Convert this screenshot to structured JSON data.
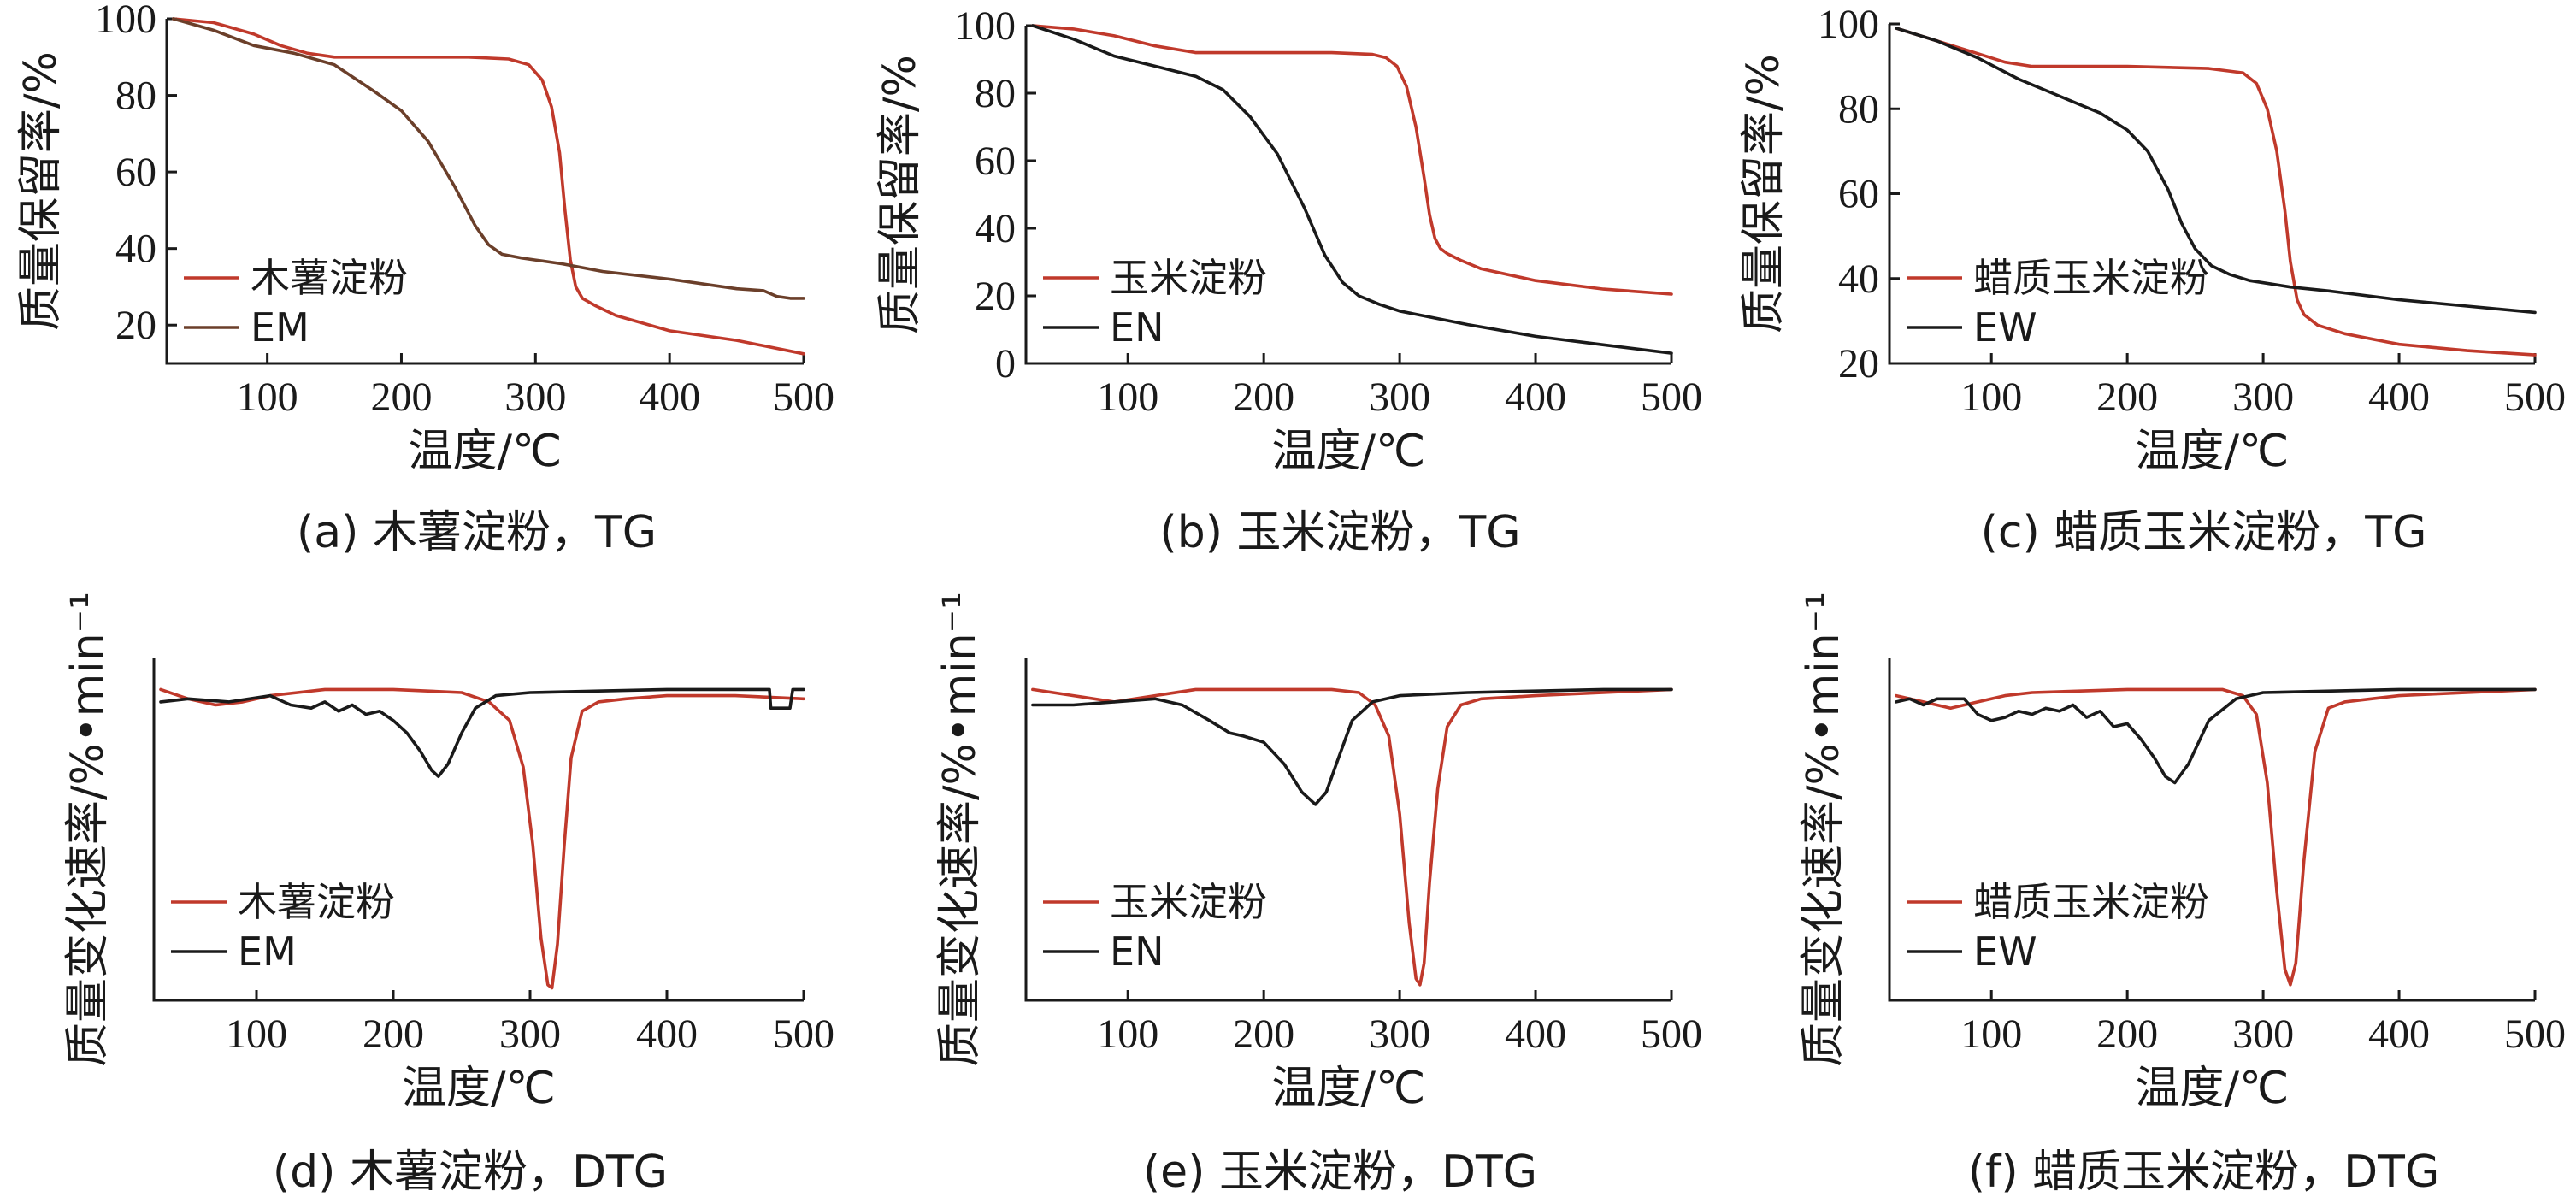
{
  "colors": {
    "starch": "#c0392b",
    "ester": "#1a1a1a",
    "ester_em_tg": "#6b3f2a"
  },
  "chart_data": [
    {
      "type": "line",
      "caption": "(a) 木薯淀粉，TG",
      "xlabel": "温度/℃",
      "ylabel": "质量保留率/%",
      "xlim": [
        25,
        500
      ],
      "ylim": [
        10,
        100
      ],
      "xticks": [
        100,
        200,
        300,
        400,
        500
      ],
      "yticks": [
        20,
        40,
        60,
        80,
        100
      ],
      "legend_position": "lower-left",
      "series": [
        {
          "name": "木薯淀粉",
          "color_key": "starch",
          "x": [
            30,
            60,
            90,
            110,
            130,
            150,
            200,
            250,
            280,
            295,
            305,
            312,
            318,
            322,
            326,
            330,
            335,
            345,
            360,
            400,
            450,
            500
          ],
          "y": [
            100,
            99,
            96,
            93,
            91,
            90,
            90,
            90,
            89.5,
            88,
            84,
            77,
            65,
            50,
            37,
            30,
            27,
            25,
            22.5,
            18.5,
            16,
            12.5
          ]
        },
        {
          "name": "EM",
          "color_key": "ester_em_tg",
          "x": [
            30,
            60,
            90,
            120,
            150,
            180,
            200,
            220,
            240,
            255,
            265,
            275,
            290,
            300,
            320,
            350,
            400,
            450,
            470,
            480,
            490,
            500
          ],
          "y": [
            100,
            97,
            93,
            91,
            88,
            81,
            76,
            68,
            56,
            46,
            41,
            38.5,
            37.5,
            37,
            36,
            34,
            32,
            29.5,
            29,
            27.5,
            27,
            27
          ]
        }
      ]
    },
    {
      "type": "line",
      "caption": "(b) 玉米淀粉，TG",
      "xlabel": "温度/℃",
      "ylabel": "质量保留率/%",
      "xlim": [
        25,
        500
      ],
      "ylim": [
        0,
        100
      ],
      "xticks": [
        100,
        200,
        300,
        400,
        500
      ],
      "yticks": [
        0,
        20,
        40,
        60,
        80,
        100
      ],
      "legend_position": "lower-left",
      "series": [
        {
          "name": "玉米淀粉",
          "color_key": "starch",
          "x": [
            30,
            60,
            90,
            120,
            150,
            200,
            250,
            280,
            290,
            298,
            305,
            312,
            318,
            322,
            326,
            330,
            335,
            345,
            360,
            400,
            450,
            500
          ],
          "y": [
            100,
            99,
            97,
            94,
            92,
            92,
            92,
            91.5,
            90.5,
            88,
            82,
            70,
            55,
            44,
            37,
            34,
            32.5,
            30.5,
            28,
            24.5,
            22,
            20.5
          ]
        },
        {
          "name": "EN",
          "color_key": "ester",
          "x": [
            30,
            60,
            90,
            120,
            150,
            170,
            190,
            210,
            230,
            245,
            258,
            270,
            285,
            300,
            350,
            400,
            450,
            500
          ],
          "y": [
            100,
            96,
            91,
            88,
            85,
            81,
            73,
            62,
            46,
            32,
            24,
            20,
            17.5,
            15.5,
            11.5,
            8,
            5.5,
            3
          ]
        }
      ]
    },
    {
      "type": "line",
      "caption": "(c) 蜡质玉米淀粉，TG",
      "xlabel": "温度/℃",
      "ylabel": "质量保留率/%",
      "xlim": [
        25,
        500
      ],
      "ylim": [
        20,
        100
      ],
      "xticks": [
        100,
        200,
        300,
        400,
        500
      ],
      "yticks": [
        20,
        40,
        60,
        80,
        100
      ],
      "legend_position": "lower-left",
      "series": [
        {
          "name": "蜡质玉米淀粉",
          "color_key": "starch",
          "x": [
            30,
            60,
            90,
            110,
            130,
            200,
            260,
            285,
            295,
            303,
            310,
            316,
            320,
            325,
            330,
            340,
            360,
            400,
            450,
            500
          ],
          "y": [
            99,
            96,
            93,
            91,
            90,
            90,
            89.5,
            88.5,
            86,
            80,
            70,
            56,
            44,
            35,
            31.5,
            29,
            27,
            24.5,
            23,
            22
          ]
        },
        {
          "name": "EW",
          "color_key": "ester",
          "x": [
            30,
            60,
            90,
            120,
            150,
            180,
            200,
            215,
            230,
            240,
            250,
            262,
            275,
            290,
            320,
            350,
            400,
            450,
            500
          ],
          "y": [
            99,
            96,
            92,
            87,
            83,
            79,
            75,
            70,
            61,
            53,
            47,
            43,
            41,
            39.5,
            38,
            37,
            35,
            33.5,
            32
          ]
        }
      ]
    },
    {
      "type": "line",
      "caption": "(d) 木薯淀粉，DTG",
      "xlabel": "温度/℃",
      "ylabel": "质量变化速率/%•min⁻¹",
      "xlim": [
        25,
        500
      ],
      "ylim": [
        -1,
        0.1
      ],
      "xticks": [
        100,
        200,
        300,
        400,
        500
      ],
      "yticks": [],
      "legend_position": "lower-left",
      "series": [
        {
          "name": "木薯淀粉",
          "color_key": "starch",
          "x": [
            30,
            50,
            70,
            90,
            110,
            130,
            150,
            200,
            250,
            270,
            285,
            295,
            302,
            308,
            313,
            316,
            320,
            325,
            330,
            338,
            350,
            370,
            400,
            450,
            500
          ],
          "y": [
            0,
            -0.03,
            -0.05,
            -0.04,
            -0.02,
            -0.01,
            0,
            0,
            -0.01,
            -0.04,
            -0.1,
            -0.25,
            -0.5,
            -0.8,
            -0.95,
            -0.96,
            -0.82,
            -0.5,
            -0.22,
            -0.07,
            -0.04,
            -0.03,
            -0.02,
            -0.02,
            -0.03
          ]
        },
        {
          "name": "EM",
          "color_key": "ester",
          "x": [
            30,
            50,
            80,
            110,
            125,
            140,
            150,
            160,
            170,
            180,
            190,
            200,
            210,
            220,
            228,
            233,
            240,
            250,
            260,
            275,
            300,
            350,
            400,
            450,
            475,
            476,
            478,
            490,
            492,
            500
          ],
          "y": [
            -0.04,
            -0.03,
            -0.04,
            -0.02,
            -0.05,
            -0.06,
            -0.04,
            -0.07,
            -0.05,
            -0.08,
            -0.07,
            -0.1,
            -0.14,
            -0.2,
            -0.26,
            -0.28,
            -0.24,
            -0.14,
            -0.06,
            -0.02,
            -0.01,
            -0.005,
            0,
            0,
            0,
            -0.06,
            -0.06,
            -0.06,
            0,
            0
          ]
        }
      ]
    },
    {
      "type": "line",
      "caption": "(e) 玉米淀粉，DTG",
      "xlabel": "温度/℃",
      "ylabel": "质量变化速率/%•min⁻¹",
      "xlim": [
        25,
        500
      ],
      "ylim": [
        -1,
        0.1
      ],
      "xticks": [
        100,
        200,
        300,
        400,
        500
      ],
      "yticks": [],
      "legend_position": "lower-left",
      "series": [
        {
          "name": "玉米淀粉",
          "color_key": "starch",
          "x": [
            30,
            60,
            90,
            120,
            150,
            200,
            250,
            270,
            282,
            292,
            300,
            307,
            312,
            315,
            318,
            322,
            328,
            335,
            345,
            360,
            400,
            450,
            500
          ],
          "y": [
            0,
            -0.02,
            -0.04,
            -0.02,
            0,
            0,
            0,
            -0.01,
            -0.05,
            -0.15,
            -0.4,
            -0.75,
            -0.93,
            -0.95,
            -0.88,
            -0.62,
            -0.32,
            -0.12,
            -0.05,
            -0.03,
            -0.02,
            -0.01,
            0
          ]
        },
        {
          "name": "EN",
          "color_key": "ester",
          "x": [
            30,
            60,
            90,
            120,
            140,
            160,
            175,
            185,
            200,
            215,
            228,
            238,
            246,
            255,
            265,
            280,
            300,
            350,
            400,
            450,
            500
          ],
          "y": [
            -0.05,
            -0.05,
            -0.04,
            -0.03,
            -0.05,
            -0.1,
            -0.14,
            -0.15,
            -0.17,
            -0.24,
            -0.33,
            -0.37,
            -0.33,
            -0.22,
            -0.1,
            -0.04,
            -0.02,
            -0.01,
            -0.005,
            0,
            0
          ]
        }
      ]
    },
    {
      "type": "line",
      "caption": "(f) 蜡质玉米淀粉，DTG",
      "xlabel": "温度/℃",
      "ylabel": "质量变化速率/%•min⁻¹",
      "xlim": [
        25,
        500
      ],
      "ylim": [
        -1,
        0.1
      ],
      "xticks": [
        100,
        200,
        300,
        400,
        500
      ],
      "yticks": [],
      "legend_position": "lower-left",
      "series": [
        {
          "name": "蜡质玉米淀粉",
          "color_key": "starch",
          "x": [
            30,
            50,
            70,
            90,
            110,
            130,
            200,
            270,
            285,
            295,
            303,
            310,
            316,
            320,
            324,
            330,
            338,
            348,
            360,
            400,
            450,
            500
          ],
          "y": [
            -0.02,
            -0.04,
            -0.06,
            -0.04,
            -0.02,
            -0.01,
            0,
            0,
            -0.02,
            -0.08,
            -0.3,
            -0.65,
            -0.9,
            -0.95,
            -0.88,
            -0.55,
            -0.2,
            -0.06,
            -0.04,
            -0.02,
            -0.01,
            0
          ]
        },
        {
          "name": "EW",
          "color_key": "ester",
          "x": [
            30,
            40,
            50,
            60,
            80,
            90,
            100,
            110,
            120,
            130,
            140,
            150,
            160,
            170,
            180,
            190,
            200,
            210,
            220,
            228,
            235,
            245,
            260,
            280,
            300,
            350,
            400,
            450,
            500
          ],
          "y": [
            -0.04,
            -0.03,
            -0.05,
            -0.03,
            -0.03,
            -0.08,
            -0.1,
            -0.09,
            -0.07,
            -0.08,
            -0.06,
            -0.07,
            -0.05,
            -0.09,
            -0.07,
            -0.12,
            -0.11,
            -0.16,
            -0.22,
            -0.28,
            -0.3,
            -0.24,
            -0.1,
            -0.03,
            -0.01,
            -0.005,
            0,
            0,
            0
          ]
        }
      ]
    }
  ]
}
